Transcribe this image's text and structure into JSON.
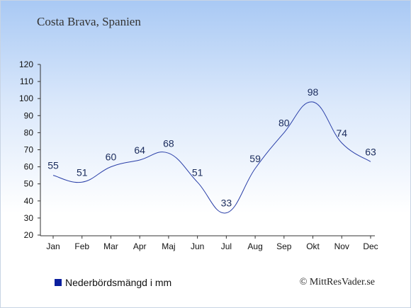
{
  "chart_data": {
    "type": "line",
    "title": "Costa Brava, Spanien",
    "categories": [
      "Jan",
      "Feb",
      "Mar",
      "Apr",
      "Maj",
      "Jun",
      "Jul",
      "Aug",
      "Sep",
      "Okt",
      "Nov",
      "Dec"
    ],
    "series": [
      {
        "name": "Nederbördsmängd i mm",
        "values": [
          55,
          51,
          60,
          64,
          68,
          51,
          33,
          59,
          80,
          98,
          74,
          63
        ],
        "color": "#0b1f9e"
      }
    ],
    "ylim": [
      20,
      120
    ],
    "yticks": [
      20,
      30,
      40,
      50,
      60,
      70,
      80,
      90,
      100,
      110,
      120
    ],
    "line_color": "#2a3fa8",
    "legend_position": "bottom-left",
    "grid": false
  },
  "credit": "© MittResVader.se"
}
